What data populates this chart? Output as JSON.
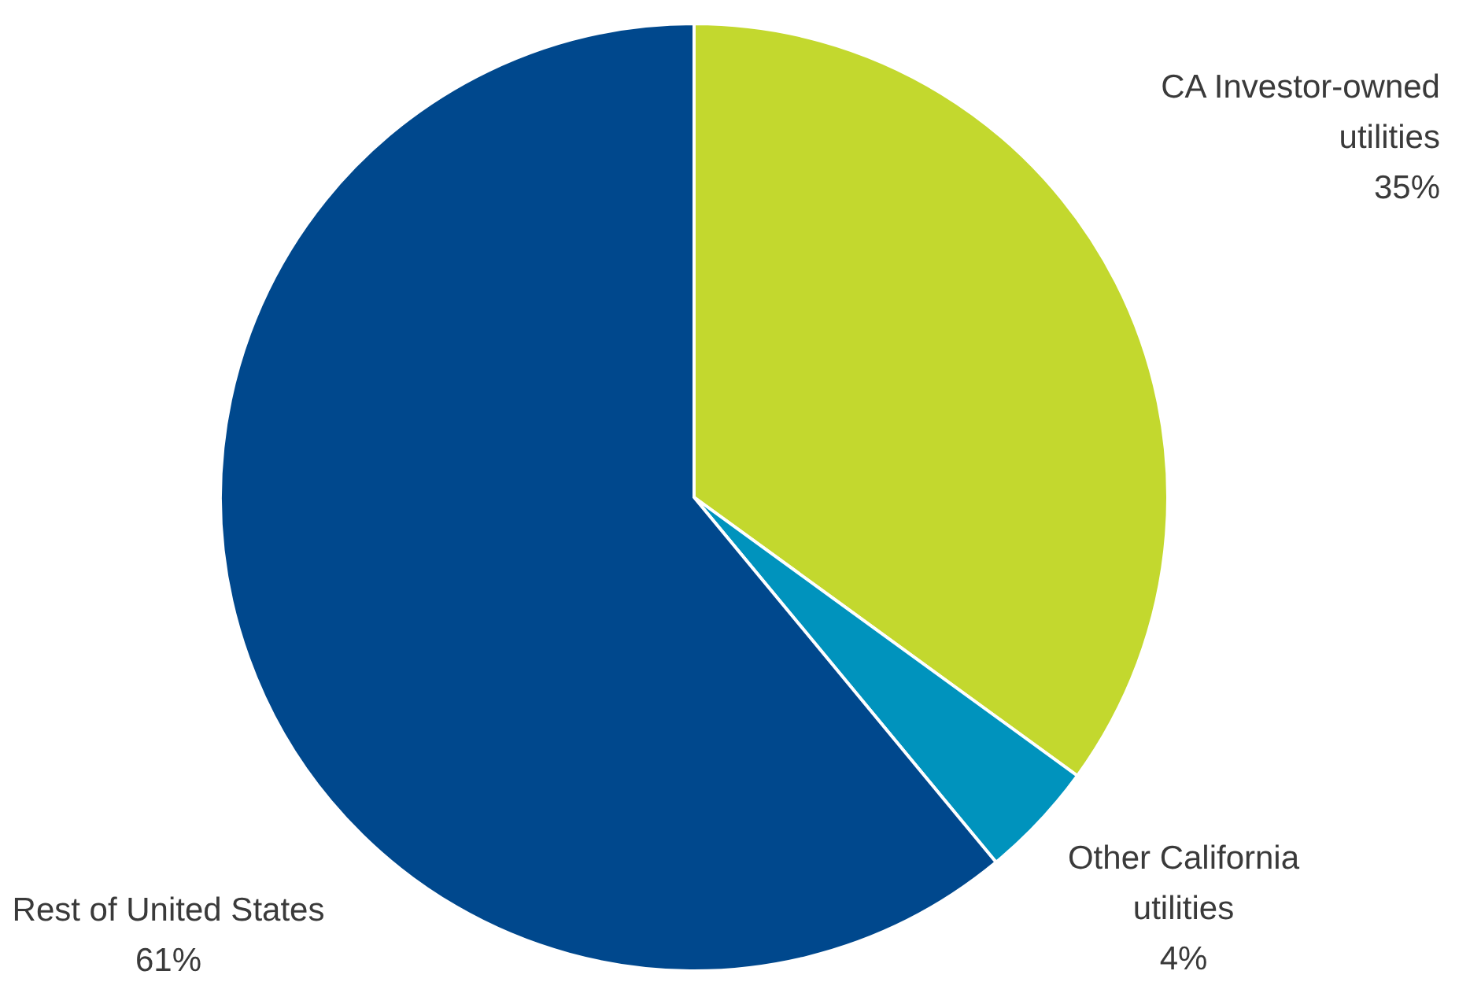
{
  "chart_data": {
    "type": "pie",
    "categories": [
      "CA Investor-owned utilities",
      "Other California utilities",
      "Rest of United States"
    ],
    "values": [
      35,
      4,
      61
    ],
    "colors": [
      "#c3d82e",
      "#0093bd",
      "#00488d"
    ],
    "value_labels": [
      "35%",
      "4%",
      "61%"
    ],
    "legend": false
  }
}
